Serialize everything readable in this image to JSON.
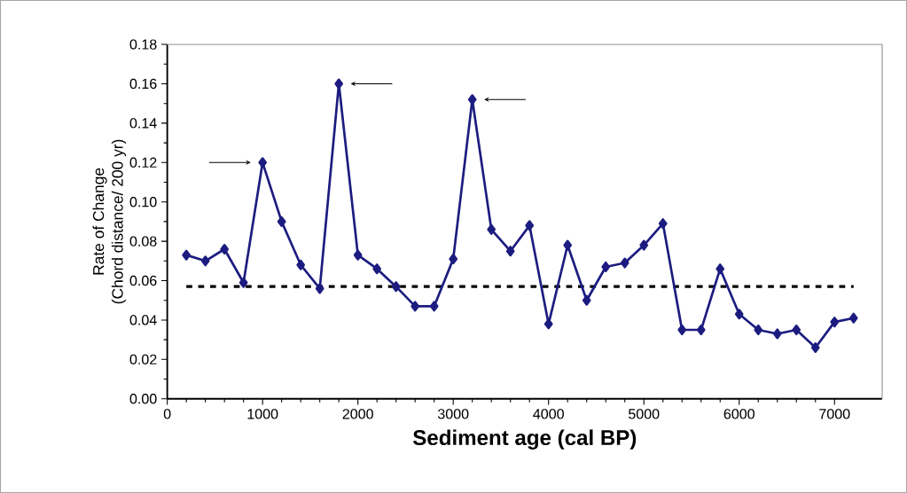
{
  "chart_data": {
    "type": "line",
    "xlabel": "Sediment age (cal BP)",
    "ylabel": "Rate of Change\n(Chord distance/ 200 yr)",
    "x": [
      200,
      400,
      600,
      800,
      1000,
      1200,
      1400,
      1600,
      1800,
      2000,
      2200,
      2400,
      2600,
      2800,
      3000,
      3200,
      3400,
      3600,
      3800,
      4000,
      4200,
      4400,
      4600,
      4800,
      5000,
      5200,
      5400,
      5600,
      5800,
      6000,
      6200,
      6400,
      6600,
      6800,
      7000,
      7200
    ],
    "series": [
      {
        "color": "#1c1c80",
        "values": [
          0.073,
          0.07,
          0.076,
          0.059,
          0.12,
          0.09,
          0.068,
          0.056,
          0.16,
          0.073,
          0.066,
          0.057,
          0.047,
          0.047,
          0.071,
          0.152,
          0.086,
          0.075,
          0.088,
          0.038,
          0.078,
          0.05,
          0.067,
          0.069,
          0.078,
          0.089,
          0.035,
          0.035,
          0.066,
          0.043,
          0.035,
          0.033,
          0.035,
          0.026,
          0.039,
          0.041
        ]
      }
    ],
    "xlim": [
      0,
      7500
    ],
    "xticks": [
      0,
      1000,
      2000,
      3000,
      4000,
      5000,
      6000,
      7000
    ],
    "ylim": [
      0,
      0.18
    ],
    "yticks": [
      {
        "value": 0,
        "label": "0.00"
      },
      {
        "value": 0.02,
        "label": "0.02"
      },
      {
        "value": 0.04,
        "label": "0.04"
      },
      {
        "value": 0.06,
        "label": "0.06"
      },
      {
        "value": 0.08,
        "label": "0.08"
      },
      {
        "value": 0.1,
        "label": "0.10"
      },
      {
        "value": 0.12,
        "label": "0.12"
      },
      {
        "value": 0.14,
        "label": "0.14"
      },
      {
        "value": 0.16,
        "label": "0.16"
      },
      {
        "value": 0.18,
        "label": "0.18"
      }
    ],
    "ref_lines": [
      {
        "axis": "y",
        "value": 0.057,
        "color": "#000000",
        "line_style": "dashed"
      }
    ],
    "marker": "diamond",
    "line_style": "solid",
    "grid": false
  }
}
